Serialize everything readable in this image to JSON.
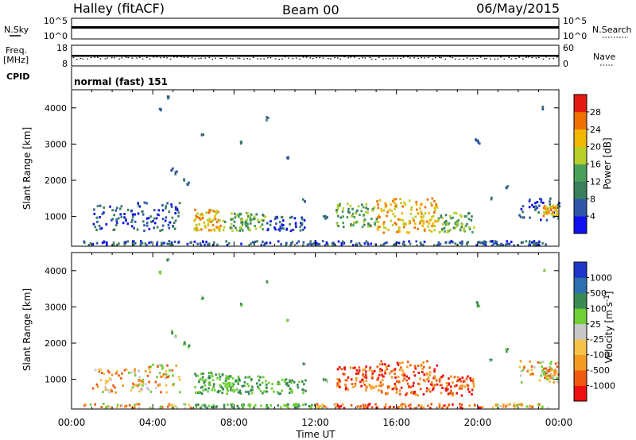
{
  "header": {
    "station": "Halley (fitACF)",
    "beam": "Beam 00",
    "date": "06/May/2015"
  },
  "strip_labels": {
    "nsky": "N.Sky",
    "freq_top": "Freq.",
    "freq_unit": "[MHz]",
    "cpid": "CPID",
    "nsearch": "N.Search",
    "nave": "Nave",
    "cpid_text": "normal (fast) 151"
  },
  "nsky_ticks": [
    "10^5",
    "10^0"
  ],
  "nsearch_ticks": [
    "10^5",
    "10^0"
  ],
  "freq_ticks": [
    "18",
    "8"
  ],
  "nave_ticks": [
    "60",
    "0"
  ],
  "colors": {
    "power": [
      "#1010ee",
      "#2e55a8",
      "#3a7f5e",
      "#4aa05a",
      "#b8cf2a",
      "#f2b800",
      "#f07000",
      "#e21a12"
    ],
    "velocity": [
      "#ee1010",
      "#f05a10",
      "#f39a20",
      "#f5c24a",
      "#c8c8c8",
      "#6fcf35",
      "#3a8a55",
      "#2e6fb0",
      "#2036c8"
    ]
  },
  "chart_data": [
    {
      "type": "heatmap",
      "title": "",
      "xlabel": "",
      "ylabel": "Slant Range [km]",
      "x_range_hours": [
        0,
        24
      ],
      "xlim": [
        "00:00",
        "00:00"
      ],
      "ylim": [
        180,
        4500
      ],
      "y_ticks": [
        1000,
        2000,
        3000,
        4000
      ],
      "colorbar": {
        "label": "Power [dB]",
        "ticks": [
          4,
          8,
          12,
          16,
          20,
          24,
          28
        ],
        "range": [
          0,
          32
        ]
      },
      "main_backscatter_band_km": [
        600,
        1400
      ],
      "peak_power_times_ut": [
        "07:00",
        "16:30",
        "23:30"
      ]
    },
    {
      "type": "heatmap",
      "title": "",
      "xlabel": "Time UT",
      "ylabel": "Slant Range [km]",
      "x_range_hours": [
        0,
        24
      ],
      "ylim": [
        180,
        4500
      ],
      "y_ticks": [
        1000,
        2000,
        3000,
        4000
      ],
      "x_ticks": [
        "00:00",
        "04:00",
        "08:00",
        "12:00",
        "16:00",
        "20:00",
        "00:00"
      ],
      "colorbar": {
        "label": "Velocity [m s^-1]",
        "ticks": [
          "-1000",
          "-500",
          "-100",
          "-25",
          "25",
          "100",
          "500",
          "1000"
        ]
      }
    }
  ]
}
